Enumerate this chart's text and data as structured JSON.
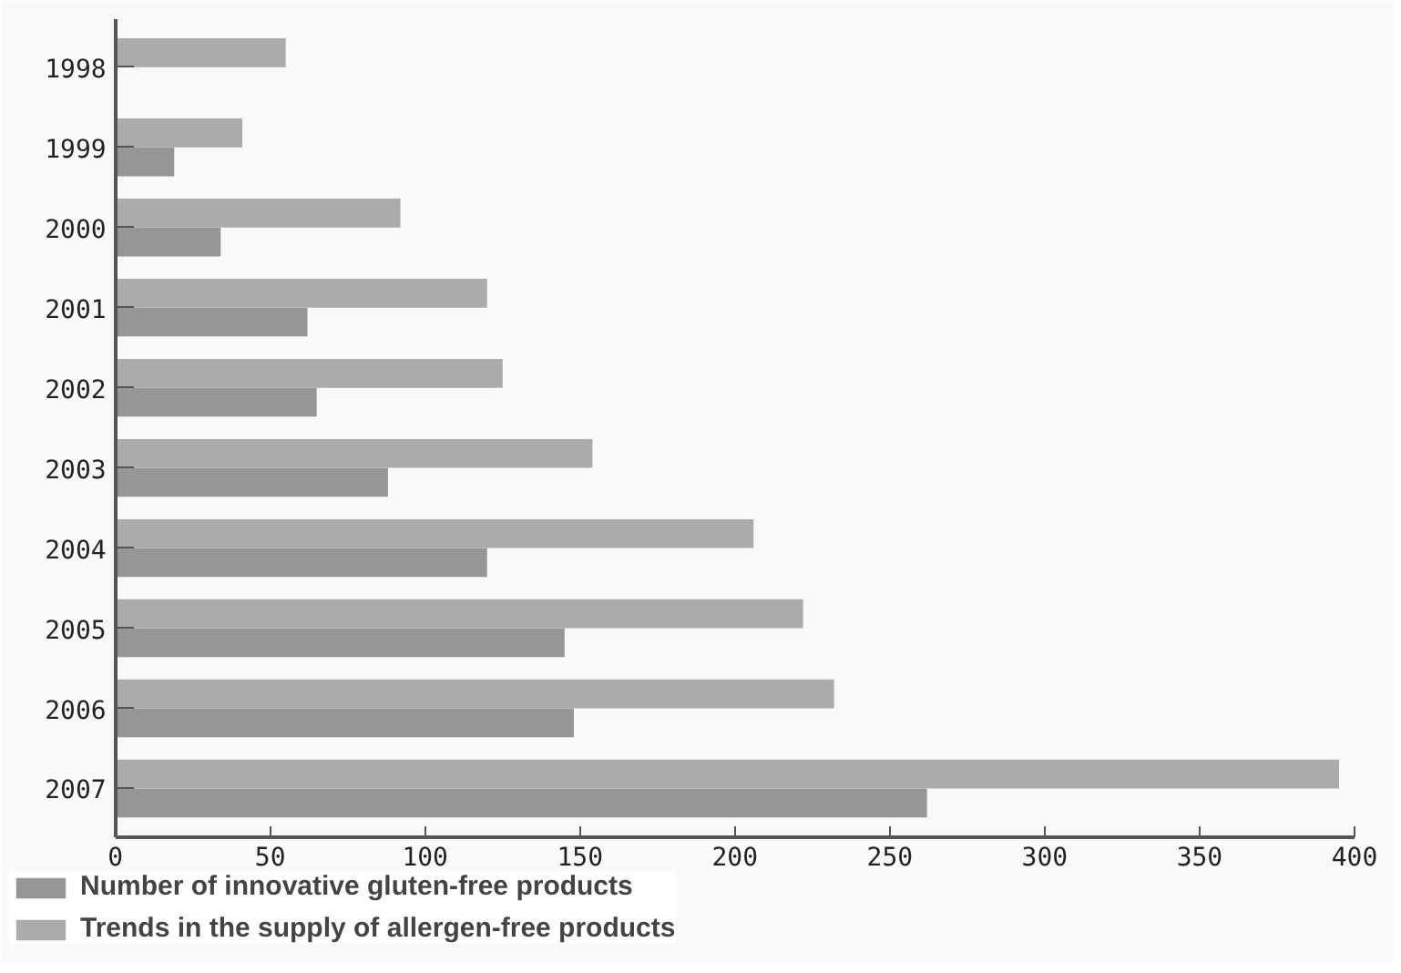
{
  "chart_data": {
    "type": "bar",
    "orientation": "horizontal",
    "categories": [
      "1998",
      "1999",
      "2000",
      "2001",
      "2002",
      "2003",
      "2004",
      "2005",
      "2006",
      "2007"
    ],
    "series": [
      {
        "name": "Number of innovative gluten-free products",
        "color": "#969696",
        "values": [
          null,
          19,
          34,
          62,
          65,
          88,
          120,
          145,
          148,
          262
        ]
      },
      {
        "name": "Trends in the supply of allergen-free products",
        "color": "#ababab",
        "values": [
          55,
          41,
          92,
          120,
          125,
          154,
          206,
          222,
          232,
          395
        ]
      }
    ],
    "xlim": [
      0,
      400
    ],
    "xticks": [
      0,
      50,
      100,
      150,
      200,
      250,
      300,
      350,
      400
    ],
    "grid": false,
    "legend": "bottom left"
  }
}
